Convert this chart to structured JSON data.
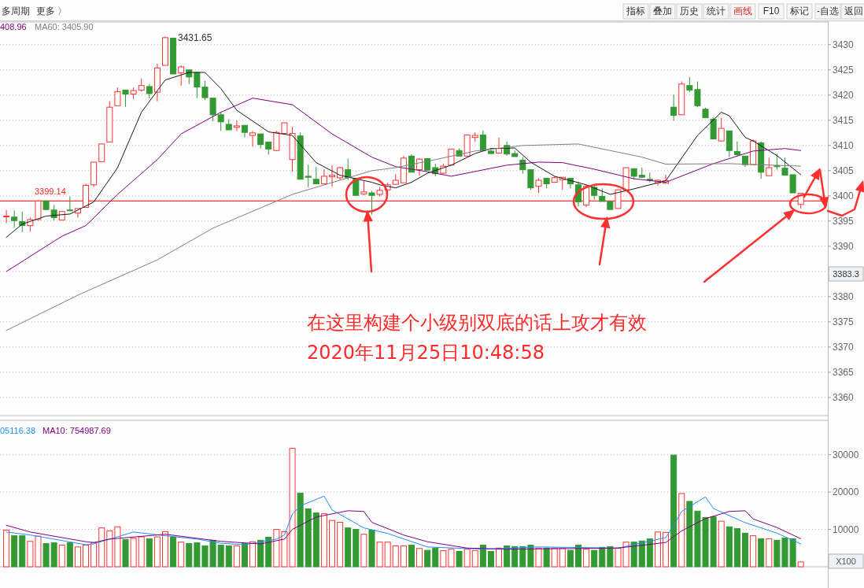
{
  "chart_data": [
    {
      "type": "candlestick",
      "categories": [
        null,
        null,
        null,
        null,
        null,
        null,
        null,
        null,
        null,
        null,
        null,
        null,
        null,
        null,
        null,
        null,
        null,
        null,
        null,
        null,
        null,
        null,
        null,
        null,
        null,
        null,
        null,
        null,
        null,
        null,
        null,
        null,
        null,
        null,
        null,
        null,
        null,
        null,
        null,
        null,
        null,
        null,
        null,
        null,
        null,
        null,
        null,
        null,
        null,
        null,
        null,
        null,
        null,
        null,
        null,
        null,
        null,
        null,
        null,
        null,
        null,
        null,
        null,
        null,
        null,
        null,
        null,
        null,
        null,
        null,
        null,
        null,
        null,
        null,
        null,
        null,
        null,
        null,
        null,
        null,
        null,
        null,
        null,
        null,
        null,
        null,
        null,
        null,
        null,
        null,
        null,
        null,
        null,
        null,
        null,
        null,
        null,
        null,
        null,
        null,
        null
      ],
      "ohlc": [
        [
          3395.9,
          3397.2,
          3394.6,
          3396.0
        ],
        [
          3395.8,
          3397.1,
          3393.7,
          3395.1
        ],
        [
          3394.9,
          3396.9,
          3392.8,
          3394.1
        ],
        [
          3394.1,
          3395.7,
          3392.9,
          3395.3
        ],
        [
          3395.3,
          3399.14,
          3395.1,
          3399.0
        ],
        [
          3399.0,
          3399.1,
          3397.2,
          3397.3
        ],
        [
          3397.2,
          3398.2,
          3395.1,
          3395.7
        ],
        [
          3395.2,
          3396.9,
          3395.2,
          3396.9
        ],
        [
          3397.2,
          3399.9,
          3397.0,
          3397.1
        ],
        [
          3396.6,
          3397.5,
          3395.7,
          3397.5
        ],
        [
          3397.7,
          3402.4,
          3397.7,
          3402.1
        ],
        [
          3402.2,
          3406.7,
          3401.8,
          3406.7
        ],
        [
          3406.8,
          3410.3,
          3406.8,
          3410.3
        ],
        [
          3410.7,
          3418.8,
          3410.7,
          3417.6
        ],
        [
          3417.9,
          3421.5,
          3417.9,
          3420.7
        ],
        [
          3421.0,
          3421.0,
          3417.7,
          3420.2
        ],
        [
          3420.2,
          3421.5,
          3419.2,
          3420.9
        ],
        [
          3421.0,
          3423.3,
          3420.7,
          3421.9
        ],
        [
          3421.7,
          3422.2,
          3419.4,
          3420.3
        ],
        [
          3420.6,
          3426.2,
          3418.8,
          3425.4
        ],
        [
          3425.9,
          3431.65,
          3425.9,
          3431.4
        ],
        [
          3431.3,
          3431.4,
          3424.2,
          3424.2
        ],
        [
          3424.4,
          3425.9,
          3421.9,
          3425.6
        ],
        [
          3425.0,
          3425.0,
          3422.2,
          3423.6
        ],
        [
          3424.5,
          3424.5,
          3419.4,
          3421.6
        ],
        [
          3421.6,
          3422.8,
          3419.0,
          3419.5
        ],
        [
          3419.4,
          3419.4,
          3414.8,
          3416.1
        ],
        [
          3416.1,
          3416.6,
          3412.9,
          3414.7
        ],
        [
          3414.2,
          3415.2,
          3413.1,
          3413.1
        ],
        [
          3413.6,
          3415.0,
          3412.9,
          3413.9
        ],
        [
          3414.0,
          3414.0,
          3411.6,
          3412.6
        ],
        [
          3412.0,
          3412.9,
          3409.8,
          3412.5
        ],
        [
          3412.3,
          3412.3,
          3409.4,
          3410.2
        ],
        [
          3410.7,
          3410.7,
          3408.2,
          3409.3
        ],
        [
          3409.0,
          3412.9,
          3408.9,
          3412.6
        ],
        [
          3412.4,
          3414.5,
          3412.3,
          3414.5
        ],
        [
          3407.2,
          3413.7,
          3404.8,
          3412.4
        ],
        [
          3411.9,
          3412.6,
          3403.3,
          3403.3
        ],
        [
          3403.9,
          3406.2,
          3401.7,
          3403.7
        ],
        [
          3403.3,
          3405.7,
          3402.4,
          3402.4
        ],
        [
          3402.4,
          3405.3,
          3402.4,
          3403.9
        ],
        [
          3403.8,
          3406.1,
          3401.8,
          3404.1
        ],
        [
          3403.6,
          3405.8,
          3403.2,
          3405.6
        ],
        [
          3405.2,
          3407.4,
          3403.2,
          3403.6
        ],
        [
          3403.5,
          3403.5,
          3400.1,
          3400.1
        ],
        [
          3400.4,
          3402.9,
          3400.1,
          3400.8
        ],
        [
          3400.6,
          3401.0,
          3396.3,
          3400.1
        ],
        [
          3400.3,
          3401.8,
          3399.9,
          3401.1
        ],
        [
          3401.2,
          3402.6,
          3400.5,
          3402.2
        ],
        [
          3402.3,
          3404.3,
          3402.3,
          3403.1
        ],
        [
          3402.6,
          3407.9,
          3402.6,
          3407.5
        ],
        [
          3407.9,
          3408.3,
          3404.7,
          3404.7
        ],
        [
          3405.2,
          3407.5,
          3404.0,
          3407.3
        ],
        [
          3407.4,
          3407.4,
          3405.1,
          3405.1
        ],
        [
          3405.6,
          3406.4,
          3403.9,
          3404.4
        ],
        [
          3404.5,
          3406.4,
          3404.4,
          3405.9
        ],
        [
          3406.1,
          3409.3,
          3406.0,
          3409.3
        ],
        [
          3409.0,
          3409.4,
          3407.9,
          3407.9
        ],
        [
          3407.9,
          3412.2,
          3407.9,
          3412.1
        ],
        [
          3411.6,
          3412.6,
          3410.7,
          3412.0
        ],
        [
          3412.1,
          3413.0,
          3409.0,
          3409.0
        ],
        [
          3408.9,
          3409.5,
          3408.4,
          3408.4
        ],
        [
          3408.5,
          3411.6,
          3408.5,
          3409.4
        ],
        [
          3410.0,
          3410.8,
          3408.0,
          3408.3
        ],
        [
          3408.4,
          3409.0,
          3407.8,
          3407.8
        ],
        [
          3407.1,
          3407.7,
          3404.4,
          3405.2
        ],
        [
          3405.2,
          3405.2,
          3401.2,
          3401.6
        ],
        [
          3401.9,
          3403.5,
          3400.6,
          3403.1
        ],
        [
          3403.5,
          3403.6,
          3401.5,
          3402.4
        ],
        [
          3402.7,
          3403.9,
          3402.7,
          3403.6
        ],
        [
          3403.2,
          3403.7,
          3401.2,
          3403.7
        ],
        [
          3403.5,
          3403.5,
          3401.5,
          3402.4
        ],
        [
          3402.2,
          3402.8,
          3397.9,
          3398.8
        ],
        [
          3398.2,
          3402.2,
          3397.8,
          3401.9
        ],
        [
          3401.7,
          3402.0,
          3399.3,
          3400.1
        ],
        [
          3399.9,
          3401.5,
          3398.9,
          3398.9
        ],
        [
          3398.9,
          3398.9,
          3397.3,
          3397.3
        ],
        [
          3397.5,
          3401.2,
          3397.5,
          3401.2
        ],
        [
          3401.2,
          3405.6,
          3401.2,
          3405.6
        ],
        [
          3405.4,
          3405.4,
          3403.2,
          3403.9
        ],
        [
          3404.1,
          3405.6,
          3403.7,
          3403.7
        ],
        [
          3403.3,
          3404.6,
          3402.7,
          3403.1
        ],
        [
          3402.6,
          3403.2,
          3402.0,
          3403.1
        ],
        [
          3402.5,
          3404.2,
          3402.5,
          3403.0
        ],
        [
          3417.6,
          3420.1,
          3414.9,
          3416.0
        ],
        [
          3416.1,
          3422.7,
          3416.1,
          3422.2
        ],
        [
          3421.9,
          3423.6,
          3420.6,
          3421.0
        ],
        [
          3421.1,
          3422.7,
          3417.6,
          3417.9
        ],
        [
          3417.2,
          3417.5,
          3415.5,
          3415.5
        ],
        [
          3415.2,
          3415.5,
          3411.3,
          3411.3
        ],
        [
          3410.9,
          3415.5,
          3410.9,
          3413.4
        ],
        [
          3412.9,
          3412.9,
          3407.7,
          3409.0
        ],
        [
          3408.8,
          3410.8,
          3407.8,
          3408.2
        ],
        [
          3407.9,
          3407.9,
          3405.7,
          3406.2
        ],
        [
          3406.2,
          3411.2,
          3406.2,
          3410.9
        ],
        [
          3410.5,
          3410.8,
          3403.4,
          3404.7
        ],
        [
          3404.0,
          3407.6,
          3404.0,
          3405.6
        ],
        [
          3406.0,
          3408.4,
          3405.2,
          3405.8
        ],
        [
          3405.5,
          3407.6,
          3404.1,
          3404.1
        ],
        [
          3404.2,
          3404.2,
          3400.6,
          3400.6
        ],
        [
          3398.3,
          3400.6,
          3397.5,
          3400.5
        ]
      ],
      "colors": [
        "#ff3333",
        "#339933",
        "#339933",
        "#ff3333",
        "#ff3333",
        "#339933",
        "#339933",
        "#ff3333",
        "#339933",
        "#ff3333",
        "#ff3333",
        "#ff3333",
        "#ff3333",
        "#ff3333",
        "#ff3333",
        "#339933",
        "#ff3333",
        "#ff3333",
        "#339933",
        "#ff3333",
        "#ff3333",
        "#339933",
        "#ff3333",
        "#339933",
        "#339933",
        "#339933",
        "#339933",
        "#339933",
        "#339933",
        "#ff3333",
        "#339933",
        "#ff3333",
        "#339933",
        "#339933",
        "#ff3333",
        "#ff3333",
        "#ff3333",
        "#339933",
        "#339933",
        "#339933",
        "#ff3333",
        "#ff3333",
        "#ff3333",
        "#339933",
        "#339933",
        "#ff3333",
        "#339933",
        "#ff3333",
        "#ff3333",
        "#ff3333",
        "#ff3333",
        "#339933",
        "#ff3333",
        "#339933",
        "#339933",
        "#ff3333",
        "#ff3333",
        "#339933",
        "#ff3333",
        "#ff3333",
        "#339933",
        "#339933",
        "#ff3333",
        "#339933",
        "#339933",
        "#339933",
        "#339933",
        "#ff3333",
        "#339933",
        "#ff3333",
        "#ff3333",
        "#339933",
        "#339933",
        "#ff3333",
        "#339933",
        "#339933",
        "#339933",
        "#ff3333",
        "#ff3333",
        "#339933",
        "#339933",
        "#339933",
        "#ff3333",
        "#ff3333",
        "#339933",
        "#ff3333",
        "#339933",
        "#339933",
        "#339933",
        "#339933",
        "#ff3333",
        "#339933",
        "#339933",
        "#339933",
        "#ff3333",
        "#339933",
        "#ff3333",
        "#339933",
        "#339933",
        "#339933",
        "#ff3333"
      ],
      "series": [
        {
          "type": "line",
          "color": "#1a1a1a",
          "values": [
            3391.8,
            null,
            3394.4,
            null,
            null,
            3396.0,
            null,
            null,
            3396.4,
            null,
            null,
            3398.8,
            null,
            null,
            3405.6,
            null,
            null,
            3416.6,
            null,
            null,
            3423.0,
            null,
            null,
            3424.5,
            null,
            3424.5,
            null,
            3421.3,
            null,
            3417.0,
            null,
            null,
            null,
            3412.7,
            null,
            null,
            3412.0,
            null,
            null,
            3406.6,
            null,
            null,
            3404.1,
            null,
            3403.4,
            null,
            3402.7,
            3402.2,
            null,
            3401.6,
            null,
            3402.7,
            null,
            3404.5,
            null,
            null,
            3406.1,
            null,
            null,
            3408.4,
            null,
            3409.4,
            null,
            null,
            3409.5,
            null,
            3406.7,
            null,
            null,
            3403.9,
            null,
            null,
            null,
            3402.2,
            null,
            null,
            3400.3,
            null,
            null,
            3401.4,
            null,
            null,
            null,
            3403.0,
            null,
            null,
            null,
            3412.0,
            null,
            null,
            3416.6,
            3415.9,
            null,
            3411.6,
            3410.9,
            null,
            null,
            3408.0,
            null,
            null,
            3404.2
          ]
        },
        {
          "type": "line",
          "color": "#800080",
          "values": [
            3385.0,
            null,
            null,
            null,
            null,
            null,
            null,
            3392.0,
            null,
            null,
            3394.1,
            null,
            null,
            null,
            3400.3,
            null,
            null,
            null,
            null,
            3407.2,
            null,
            null,
            3412.3,
            null,
            null,
            null,
            null,
            3416.6,
            null,
            null,
            null,
            3419.4,
            null,
            null,
            null,
            null,
            3418.1,
            null,
            null,
            null,
            null,
            3412.3,
            null,
            null,
            null,
            null,
            3407.7,
            null,
            null,
            3405.8,
            null,
            null,
            null,
            3404.8,
            null,
            null,
            3403.9,
            null,
            null,
            null,
            null,
            null,
            null,
            3406.1,
            null,
            null,
            null,
            3406.7,
            null,
            null,
            3406.6,
            null,
            null,
            null,
            3405.3,
            null,
            null,
            null,
            null,
            3403.4,
            null,
            null,
            null,
            3402.7,
            null,
            null,
            null,
            null,
            null,
            3406.4,
            null,
            null,
            null,
            null,
            3408.9,
            null,
            null,
            null,
            3409.4,
            null,
            3409.0
          ]
        },
        {
          "type": "line",
          "color": "#808080",
          "values": [
            3373.3,
            null,
            null,
            null,
            null,
            null,
            null,
            null,
            null,
            3380.3,
            null,
            null,
            null,
            null,
            null,
            null,
            null,
            null,
            null,
            3387.3,
            null,
            null,
            null,
            null,
            null,
            null,
            3393.6,
            null,
            null,
            null,
            null,
            null,
            null,
            null,
            null,
            null,
            3400.3,
            null,
            null,
            null,
            null,
            null,
            null,
            null,
            null,
            null,
            3405.0,
            null,
            null,
            3405.6,
            null,
            null,
            null,
            null,
            3407.2,
            null,
            null,
            null,
            null,
            3408.9,
            null,
            null,
            null,
            null,
            null,
            3410.0,
            null,
            null,
            null,
            null,
            null,
            null,
            3410.3,
            null,
            null,
            null,
            null,
            null,
            null,
            null,
            3407.7,
            null,
            null,
            3406.3,
            null,
            null,
            null,
            null,
            null,
            null,
            null,
            3406.4,
            null,
            null,
            null,
            null,
            null,
            null,
            null,
            null,
            3405.9
          ]
        }
      ],
      "ylim": [
        3356.4,
        3434.5
      ],
      "yticks": [
        3360,
        3365,
        3370,
        3375,
        3380,
        {
          "value": 3385,
          "label": null
        },
        3390,
        3395,
        3400,
        3405,
        3410,
        3415,
        3420,
        3425,
        3430
      ],
      "grid": "y",
      "tick_labels": "y",
      "ref_lines": [
        {
          "axis": "y",
          "value": 3399,
          "color": "#ff0000"
        }
      ],
      "annotations": [
        "多周期",
        "更多 〉",
        "指标",
        "叠加",
        "历史",
        "统计",
        "画线",
        "F10",
        "标记",
        "-自选",
        "返回",
        "408.96",
        "MA60: 3405.90",
        "3383.3",
        "在这里构建个小级别双底的话上攻才有效",
        "2020年11月25日10:48:58",
        "3431.65",
        "3399.14"
      ]
    },
    {
      "type": "bar",
      "categories": [
        null,
        null,
        null,
        null,
        null,
        null,
        null,
        null,
        null,
        null,
        null,
        null,
        null,
        null,
        null,
        null,
        null,
        null,
        null,
        null,
        null,
        null,
        null,
        null,
        null,
        null,
        null,
        null,
        null,
        null,
        null,
        null,
        null,
        null,
        null,
        null,
        null,
        null,
        null,
        null,
        null,
        null,
        null,
        null,
        null,
        null,
        null,
        null,
        null,
        null,
        null,
        null,
        null,
        null,
        null,
        null,
        null,
        null,
        null,
        null,
        null,
        null,
        null,
        null,
        null,
        null,
        null,
        null,
        null,
        null,
        null,
        null,
        null,
        null,
        null,
        null,
        null,
        null,
        null,
        null,
        null,
        null,
        null,
        null,
        null,
        null,
        null,
        null,
        null,
        null,
        null,
        null,
        null,
        null,
        null,
        null,
        null,
        null,
        null,
        null,
        null
      ],
      "values": [
        9800,
        8300,
        8300,
        6800,
        8200,
        6200,
        6400,
        5800,
        6400,
        5300,
        5800,
        6400,
        10400,
        9600,
        10700,
        7300,
        7600,
        8000,
        7500,
        8000,
        9400,
        7900,
        6600,
        6200,
        6400,
        5600,
        7100,
        5800,
        5600,
        5600,
        6200,
        6700,
        7100,
        7900,
        10000,
        9400,
        31700,
        19700,
        15500,
        14400,
        14200,
        12400,
        11900,
        10400,
        10000,
        8700,
        9800,
        6600,
        6600,
        5600,
        5600,
        5800,
        4900,
        4400,
        5000,
        4300,
        4700,
        4100,
        4700,
        4300,
        5800,
        4100,
        5000,
        5600,
        5400,
        5400,
        5800,
        5000,
        5000,
        5000,
        5000,
        4400,
        5800,
        4700,
        4400,
        5200,
        5400,
        5000,
        6600,
        6600,
        6900,
        7500,
        9300,
        9200,
        29900,
        19600,
        17500,
        14900,
        13200,
        13400,
        12200,
        10700,
        10200,
        9000,
        8300,
        7500,
        7500,
        7100,
        7700,
        7500,
        1300
      ],
      "colors": [
        "#ff3333",
        "#339933",
        "#339933",
        "#ff3333",
        "#ff3333",
        "#339933",
        "#339933",
        "#ff3333",
        "#339933",
        "#ff3333",
        "#ff3333",
        "#ff3333",
        "#ff3333",
        "#ff3333",
        "#ff3333",
        "#339933",
        "#ff3333",
        "#ff3333",
        "#339933",
        "#ff3333",
        "#ff3333",
        "#339933",
        "#ff3333",
        "#339933",
        "#339933",
        "#339933",
        "#339933",
        "#339933",
        "#339933",
        "#ff3333",
        "#339933",
        "#ff3333",
        "#339933",
        "#339933",
        "#ff3333",
        "#ff3333",
        "#ff3333",
        "#339933",
        "#339933",
        "#339933",
        "#ff3333",
        "#ff3333",
        "#ff3333",
        "#339933",
        "#339933",
        "#ff3333",
        "#339933",
        "#ff3333",
        "#ff3333",
        "#ff3333",
        "#ff3333",
        "#339933",
        "#ff3333",
        "#339933",
        "#339933",
        "#ff3333",
        "#ff3333",
        "#339933",
        "#ff3333",
        "#ff3333",
        "#339933",
        "#339933",
        "#ff3333",
        "#339933",
        "#339933",
        "#339933",
        "#339933",
        "#ff3333",
        "#339933",
        "#ff3333",
        "#ff3333",
        "#339933",
        "#339933",
        "#ff3333",
        "#339933",
        "#339933",
        "#339933",
        "#ff3333",
        "#ff3333",
        "#339933",
        "#339933",
        "#339933",
        "#ff3333",
        "#ff3333",
        "#339933",
        "#ff3333",
        "#339933",
        "#339933",
        "#339933",
        "#339933",
        "#ff3333",
        "#339933",
        "#339933",
        "#339933",
        "#ff3333",
        "#339933",
        "#ff3333",
        "#339933",
        "#339933",
        "#339933",
        "#ff3333"
      ],
      "series": [
        {
          "type": "line",
          "color": "#1e90ff",
          "values": [
            9300,
            null,
            null,
            8500,
            null,
            null,
            7400,
            null,
            null,
            null,
            5900,
            6100,
            null,
            7400,
            null,
            null,
            9300,
            null,
            null,
            null,
            8300,
            null,
            null,
            null,
            7400,
            null,
            null,
            6300,
            null,
            null,
            5900,
            null,
            null,
            null,
            7400,
            8500,
            14100,
            16300,
            null,
            null,
            18900,
            15200,
            null,
            null,
            null,
            10400,
            null,
            null,
            8900,
            null,
            null,
            null,
            null,
            5300,
            null,
            null,
            null,
            null,
            null,
            null,
            4700,
            null,
            null,
            null,
            null,
            null,
            null,
            5300,
            null,
            null,
            null,
            null,
            null,
            null,
            null,
            null,
            null,
            5000,
            null,
            null,
            null,
            null,
            null,
            7800,
            11100,
            14800,
            null,
            null,
            18700,
            15600,
            null,
            null,
            null,
            11800,
            null,
            null,
            null,
            9000,
            null,
            null,
            6100
          ]
        },
        {
          "type": "line",
          "color": "#800080",
          "values": [
            11100,
            null,
            null,
            9300,
            null,
            null,
            null,
            null,
            null,
            null,
            6700,
            6500,
            null,
            7400,
            null,
            null,
            null,
            null,
            null,
            null,
            8700,
            null,
            null,
            null,
            null,
            null,
            null,
            6800,
            null,
            null,
            null,
            null,
            6100,
            null,
            null,
            7400,
            10000,
            null,
            null,
            13300,
            null,
            null,
            null,
            15000,
            null,
            14800,
            11900,
            null,
            null,
            null,
            8500,
            null,
            null,
            6700,
            null,
            null,
            null,
            null,
            5000,
            null,
            null,
            null,
            null,
            4700,
            null,
            null,
            null,
            null,
            null,
            null,
            null,
            null,
            null,
            null,
            null,
            null,
            null,
            5000,
            null,
            null,
            null,
            null,
            null,
            6500,
            null,
            9600,
            null,
            null,
            12900,
            null,
            null,
            14800,
            null,
            15000,
            12800,
            null,
            null,
            10500,
            null,
            null,
            7500
          ]
        }
      ],
      "ylim": [
        0,
        39200
      ],
      "yticks": [
        10000,
        20000,
        30000
      ],
      "grid": "y",
      "tick_labels": "y",
      "annotations": [
        "05116.38",
        "MA10: 754987.69",
        "X100"
      ]
    }
  ]
}
